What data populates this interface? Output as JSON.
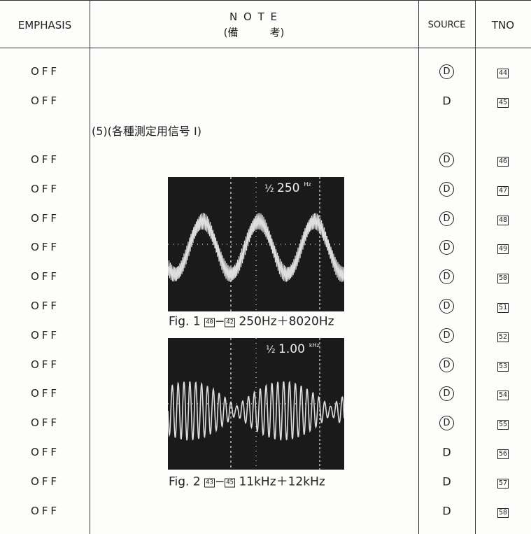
{
  "header": {
    "emphasis": "EMPHASIS",
    "note": "N O T E",
    "note_sub": "(備　　　考)",
    "source": "SOURCE",
    "tno": "TNO"
  },
  "note_row": "(5)(各種測定用信号 I)",
  "rows": [
    {
      "emphasis": "OFF",
      "source": "D",
      "circled": true,
      "tno": "44"
    },
    {
      "emphasis": "OFF",
      "source": "D",
      "circled": false,
      "tno": "45"
    },
    {
      "emphasis": "OFF",
      "source": "D",
      "circled": true,
      "tno": "46"
    },
    {
      "emphasis": "OFF",
      "source": "D",
      "circled": true,
      "tno": "47"
    },
    {
      "emphasis": "OFF",
      "source": "D",
      "circled": true,
      "tno": "48"
    },
    {
      "emphasis": "OFF",
      "source": "D",
      "circled": true,
      "tno": "49"
    },
    {
      "emphasis": "OFF",
      "source": "D",
      "circled": true,
      "tno": "50"
    },
    {
      "emphasis": "OFF",
      "source": "D",
      "circled": true,
      "tno": "51"
    },
    {
      "emphasis": "OFF",
      "source": "D",
      "circled": true,
      "tno": "52"
    },
    {
      "emphasis": "OFF",
      "source": "D",
      "circled": true,
      "tno": "53"
    },
    {
      "emphasis": "OFF",
      "source": "D",
      "circled": true,
      "tno": "54"
    },
    {
      "emphasis": "OFF",
      "source": "D",
      "circled": true,
      "tno": "55"
    },
    {
      "emphasis": "OFF",
      "source": "D",
      "circled": false,
      "tno": "56"
    },
    {
      "emphasis": "OFF",
      "source": "D",
      "circled": false,
      "tno": "57"
    },
    {
      "emphasis": "OFF",
      "source": "D",
      "circled": false,
      "tno": "58"
    }
  ],
  "figures": [
    {
      "scope_value": "250",
      "scope_unit": "Hz",
      "label": "Fig. 1",
      "ref_from": "40",
      "ref_to": "42",
      "text": "250Hz＋8020Hz"
    },
    {
      "scope_value": "1.00",
      "scope_unit": "kHz",
      "label": "Fig. 2",
      "ref_from": "43",
      "ref_to": "45",
      "text": "11kHz＋12kHz"
    }
  ]
}
